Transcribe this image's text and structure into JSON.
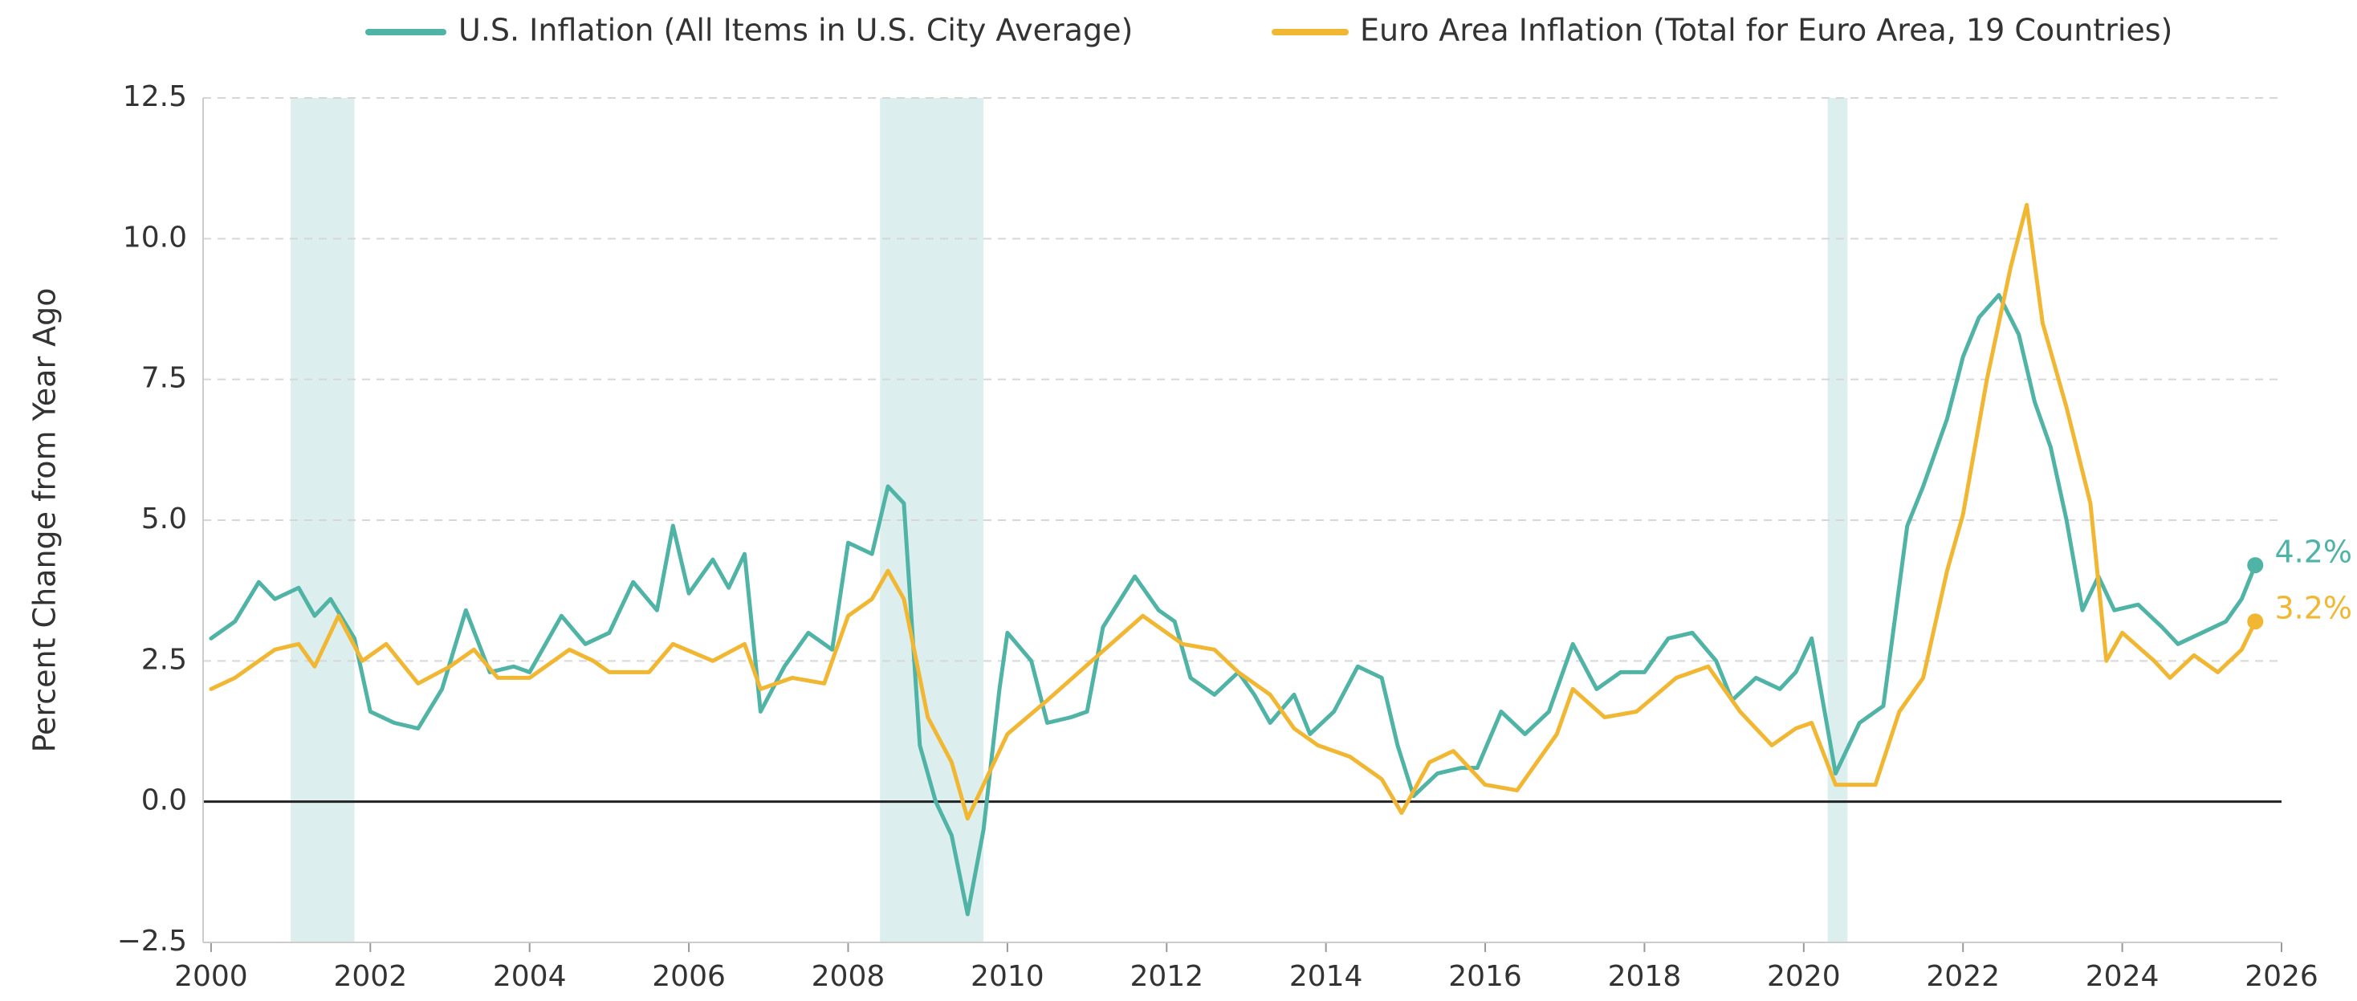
{
  "chart_data": {
    "type": "line",
    "ylabel": "Percent Change from Year Ago",
    "xlim": [
      1999.9,
      2026
    ],
    "ylim": [
      -2.5,
      12.5
    ],
    "xticks": [
      2000,
      2002,
      2004,
      2006,
      2008,
      2010,
      2012,
      2014,
      2016,
      2018,
      2020,
      2022,
      2024,
      2026
    ],
    "yticks": [
      {
        "value": -2.5,
        "label": "−2.5"
      },
      {
        "value": 0,
        "label": "0.0"
      },
      2.5,
      {
        "value": 5,
        "label": "5.0"
      },
      7.5,
      {
        "value": 10,
        "label": "10.0"
      },
      12.5
    ],
    "grid": true,
    "recessions": [
      [
        2001.0,
        2001.8
      ],
      [
        2008.4,
        2009.7
      ],
      [
        2020.3,
        2020.55
      ]
    ],
    "recession_color": "#dcefee",
    "series": [
      {
        "name": "U.S. Inflation (All Items in U.S. City Average)",
        "color": "#4fb3a5",
        "end_label": "4.2%",
        "x": [
          2000.0,
          2000.3,
          2000.6,
          2000.8,
          2001.1,
          2001.3,
          2001.5,
          2001.8,
          2002.0,
          2002.3,
          2002.6,
          2002.9,
          2003.2,
          2003.5,
          2003.8,
          2004.0,
          2004.4,
          2004.7,
          2005.0,
          2005.3,
          2005.6,
          2005.8,
          2006.0,
          2006.3,
          2006.5,
          2006.7,
          2006.9,
          2007.2,
          2007.5,
          2007.8,
          2008.0,
          2008.3,
          2008.5,
          2008.7,
          2008.9,
          2009.1,
          2009.3,
          2009.5,
          2009.7,
          2009.9,
          2010.0,
          2010.3,
          2010.5,
          2010.8,
          2011.0,
          2011.2,
          2011.6,
          2011.9,
          2012.1,
          2012.3,
          2012.6,
          2012.9,
          2013.1,
          2013.3,
          2013.6,
          2013.8,
          2014.1,
          2014.4,
          2014.7,
          2014.9,
          2015.1,
          2015.4,
          2015.7,
          2015.9,
          2016.2,
          2016.5,
          2016.8,
          2017.1,
          2017.4,
          2017.7,
          2018.0,
          2018.3,
          2018.6,
          2018.9,
          2019.1,
          2019.4,
          2019.7,
          2019.9,
          2020.1,
          2020.4,
          2020.7,
          2021.0,
          2021.3,
          2021.5,
          2021.8,
          2022.0,
          2022.2,
          2022.45,
          2022.7,
          2022.9,
          2023.1,
          2023.3,
          2023.5,
          2023.7,
          2023.9,
          2024.2,
          2024.5,
          2024.7,
          2025.0,
          2025.3,
          2025.5,
          2025.67
        ],
        "values": [
          2.9,
          3.2,
          3.9,
          3.6,
          3.8,
          3.3,
          3.6,
          2.9,
          1.6,
          1.4,
          1.3,
          2.0,
          3.4,
          2.3,
          2.4,
          2.3,
          3.3,
          2.8,
          3.0,
          3.9,
          3.4,
          4.9,
          3.7,
          4.3,
          3.8,
          4.4,
          1.6,
          2.4,
          3.0,
          2.7,
          4.6,
          4.4,
          5.6,
          5.3,
          1.0,
          0.0,
          -0.6,
          -2.0,
          -0.5,
          2.0,
          3.0,
          2.5,
          1.4,
          1.5,
          1.6,
          3.1,
          4.0,
          3.4,
          3.2,
          2.2,
          1.9,
          2.3,
          1.9,
          1.4,
          1.9,
          1.2,
          1.6,
          2.4,
          2.2,
          1.0,
          0.1,
          0.5,
          0.6,
          0.6,
          1.6,
          1.2,
          1.6,
          2.8,
          2.0,
          2.3,
          2.3,
          2.9,
          3.0,
          2.5,
          1.8,
          2.2,
          2.0,
          2.3,
          2.9,
          0.5,
          1.4,
          1.7,
          4.9,
          5.6,
          6.8,
          7.9,
          8.6,
          9.0,
          8.3,
          7.1,
          6.3,
          5.0,
          3.4,
          4.0,
          3.4,
          3.5,
          3.1,
          2.8,
          3.0,
          3.2,
          3.6,
          4.2
        ]
      },
      {
        "name": "Euro Area Inflation (Total for Euro Area, 19 Countries)",
        "color": "#f1b733",
        "end_label": "3.2%",
        "x": [
          2000.0,
          2000.3,
          2000.5,
          2000.8,
          2001.1,
          2001.3,
          2001.6,
          2001.9,
          2002.2,
          2002.6,
          2003.0,
          2003.3,
          2003.6,
          2004.0,
          2004.5,
          2004.8,
          2005.0,
          2005.5,
          2005.8,
          2006.3,
          2006.7,
          2006.9,
          2007.3,
          2007.7,
          2008.0,
          2008.3,
          2008.5,
          2008.7,
          2009.0,
          2009.3,
          2009.5,
          2009.7,
          2010.0,
          2010.5,
          2010.9,
          2011.3,
          2011.7,
          2012.2,
          2012.6,
          2012.9,
          2013.3,
          2013.6,
          2013.9,
          2014.3,
          2014.7,
          2014.95,
          2015.3,
          2015.6,
          2016.0,
          2016.4,
          2016.9,
          2017.1,
          2017.5,
          2017.9,
          2018.4,
          2018.8,
          2019.2,
          2019.6,
          2019.9,
          2020.1,
          2020.4,
          2020.7,
          2020.9,
          2021.2,
          2021.5,
          2021.8,
          2022.0,
          2022.3,
          2022.6,
          2022.8,
          2023.0,
          2023.3,
          2023.6,
          2023.8,
          2024.0,
          2024.4,
          2024.6,
          2024.9,
          2025.2,
          2025.5,
          2025.67
        ],
        "values": [
          2.0,
          2.2,
          2.4,
          2.7,
          2.8,
          2.4,
          3.3,
          2.5,
          2.8,
          2.1,
          2.4,
          2.7,
          2.2,
          2.2,
          2.7,
          2.5,
          2.3,
          2.3,
          2.8,
          2.5,
          2.8,
          2.0,
          2.2,
          2.1,
          3.3,
          3.6,
          4.1,
          3.6,
          1.5,
          0.7,
          -0.3,
          0.3,
          1.2,
          1.8,
          2.3,
          2.8,
          3.3,
          2.8,
          2.7,
          2.3,
          1.9,
          1.3,
          1.0,
          0.8,
          0.4,
          -0.2,
          0.7,
          0.9,
          0.3,
          0.2,
          1.2,
          2.0,
          1.5,
          1.6,
          2.2,
          2.4,
          1.6,
          1.0,
          1.3,
          1.4,
          0.3,
          0.3,
          0.3,
          1.6,
          2.2,
          4.1,
          5.1,
          7.5,
          9.5,
          10.6,
          8.5,
          7.0,
          5.3,
          2.5,
          3.0,
          2.5,
          2.2,
          2.6,
          2.3,
          2.7,
          3.2
        ]
      }
    ]
  }
}
